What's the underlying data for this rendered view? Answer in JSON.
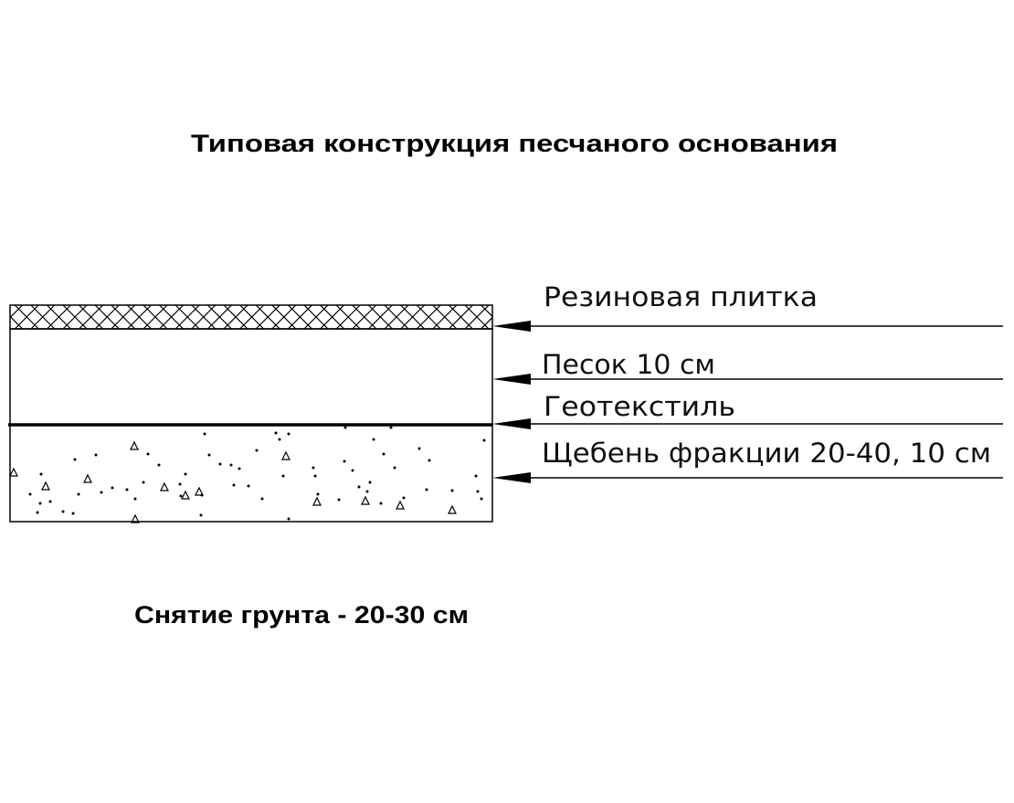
{
  "title": "Типовая конструкция песчаного основания",
  "layers": [
    {
      "label": "Резиновая плитка",
      "pattern": "crosshatch"
    },
    {
      "label": "Песок 10 см",
      "pattern": "blank"
    },
    {
      "label": "Геотекстиль",
      "pattern": "thick-line"
    },
    {
      "label": "Щебень фракции 20-40, 10 см",
      "pattern": "dots-triangles"
    }
  ],
  "note": "Снятие грунта - 20-30 см",
  "colors": {
    "line": "#000000",
    "background": "#ffffff"
  }
}
